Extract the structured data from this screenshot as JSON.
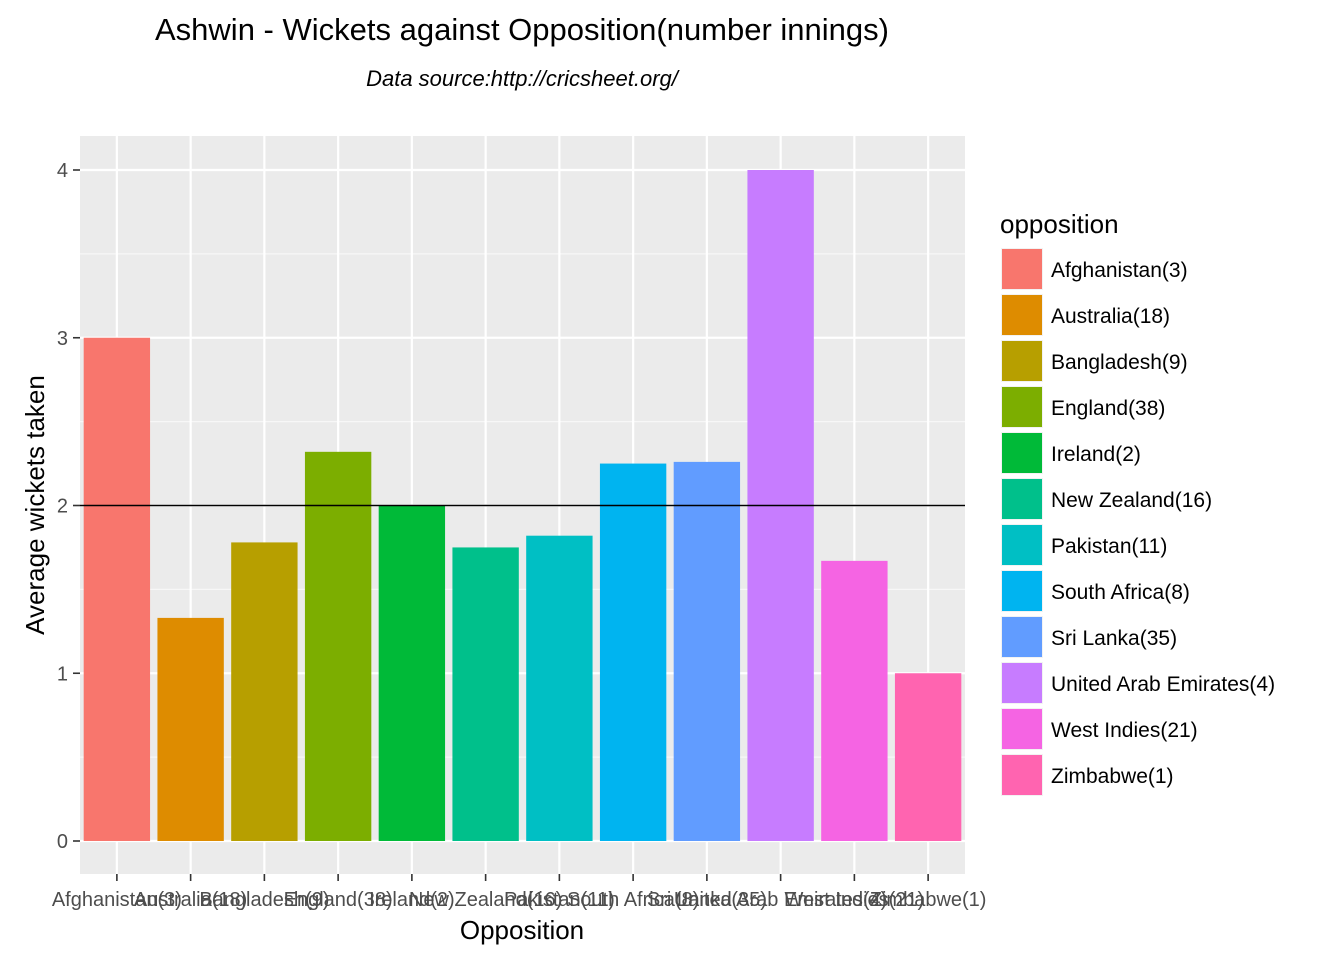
{
  "chart_data": {
    "type": "bar",
    "title": "Ashwin - Wickets against Opposition(number innings)",
    "subtitle": "Data source:http://cricsheet.org/",
    "xlabel": "Opposition",
    "ylabel": "Average wickets taken",
    "ylim": [
      0,
      4.2
    ],
    "y_ticks": [
      0,
      1,
      2,
      3,
      4
    ],
    "reference_line": 2,
    "legend": {
      "title": "opposition",
      "placement": "right"
    },
    "grid": true,
    "categories": [
      "Afghanistan(3)",
      "Australia(18)",
      "Bangladesh(9)",
      "England(38)",
      "Ireland(2)",
      "New Zealand(16)",
      "Pakistan(11)",
      "South Africa(8)",
      "Sri Lanka(35)",
      "United Arab Emirates(4)",
      "West Indies(21)",
      "Zimbabwe(1)"
    ],
    "values": [
      3.0,
      1.33,
      1.78,
      2.32,
      2.0,
      1.75,
      1.82,
      2.25,
      2.26,
      4.0,
      1.67,
      1.0
    ],
    "colors": [
      "#F8766D",
      "#DE8C00",
      "#B79F00",
      "#7CAE00",
      "#00BA38",
      "#00C08B",
      "#00BFC4",
      "#00B4F0",
      "#619CFF",
      "#C77CFF",
      "#F564E3",
      "#FF64B0"
    ]
  }
}
